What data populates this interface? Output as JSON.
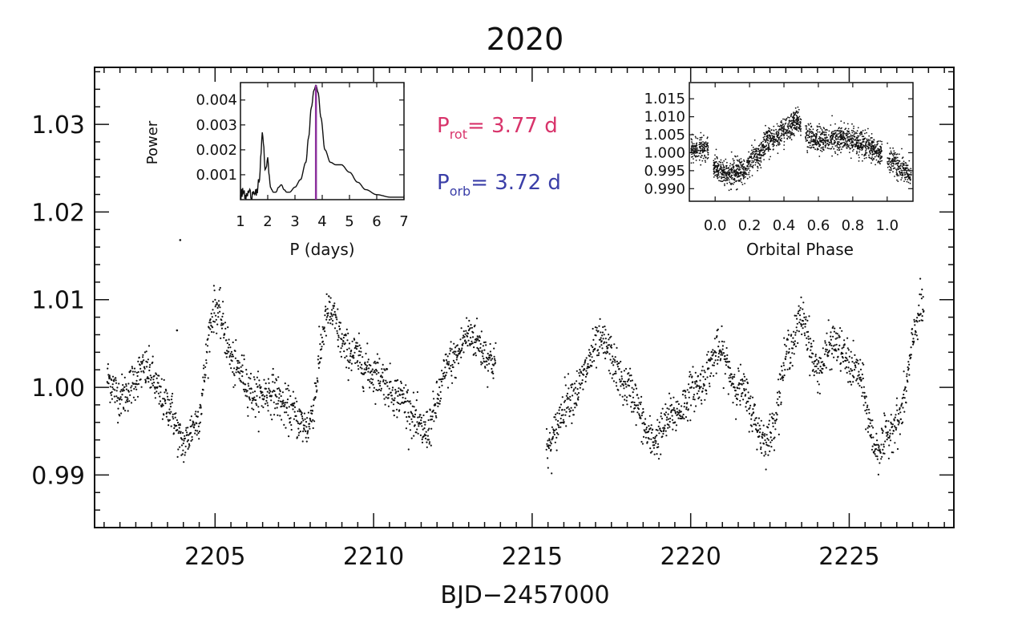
{
  "title": "2020",
  "chart_data": {
    "type": "scatter",
    "title": "2020",
    "xlabel": "BJD−2457000",
    "ylabel": "",
    "xlim": [
      2201.2,
      2228.3
    ],
    "ylim": [
      0.984,
      1.0365
    ],
    "x_ticks": [
      2205,
      2210,
      2215,
      2220,
      2225
    ],
    "y_ticks": [
      0.99,
      1.0,
      1.01,
      1.02,
      1.03
    ],
    "y_tick_labels": [
      "0.99",
      "1.00",
      "1.01",
      "1.02",
      "1.03"
    ],
    "segments": [
      [
        2201.6,
        2213.85
      ],
      [
        2215.45,
        2227.35
      ]
    ],
    "rotation_period_days": 3.77,
    "orbital_period_days": 3.72,
    "spot_model": {
      "description": "Approximate light-curve envelope read off the figure (flux vs BJD-2457000)",
      "knots_x": [
        2201.6,
        2202.0,
        2202.8,
        2203.5,
        2204.0,
        2204.4,
        2205.0,
        2205.7,
        2206.3,
        2206.8,
        2207.3,
        2207.9,
        2208.6,
        2209.2,
        2210.1,
        2210.8,
        2211.6,
        2212.5,
        2213.0,
        2213.8,
        2215.45,
        2216.2,
        2217.2,
        2218.0,
        2218.8,
        2219.5,
        2220.2,
        2220.9,
        2221.5,
        2222.4,
        2223.2,
        2223.5,
        2224.0,
        2224.5,
        2225.2,
        2225.9,
        2226.5,
        2227.3
      ],
      "knots_y": [
        1.001,
        0.999,
        1.002,
        0.998,
        0.9935,
        0.996,
        1.009,
        1.002,
        0.999,
        0.9995,
        0.9975,
        0.9955,
        1.0085,
        1.004,
        1.0015,
        0.999,
        0.995,
        1.003,
        1.006,
        1.003,
        0.993,
        0.999,
        1.005,
        1.0,
        0.994,
        0.997,
        1.0,
        1.004,
        1.0,
        0.994,
        1.005,
        1.008,
        1.002,
        1.005,
        1.002,
        0.993,
        0.996,
        1.009
      ],
      "scatter_sigma": 0.0012
    },
    "outliers": [
      {
        "x": 2203.9,
        "y": 1.0168
      },
      {
        "x": 2203.8,
        "y": 1.0065
      }
    ],
    "inset_periodogram": {
      "type": "line",
      "xlabel": "P (days)",
      "ylabel": "Power",
      "xlim": [
        1,
        7
      ],
      "ylim": [
        0,
        0.0047
      ],
      "x_ticks": [
        1,
        2,
        3,
        4,
        5,
        6,
        7
      ],
      "y_ticks": [
        0.001,
        0.002,
        0.003,
        0.004
      ],
      "y_tick_labels": [
        "0.001",
        "0.002",
        "0.003",
        "0.004"
      ],
      "x": [
        1.0,
        1.1,
        1.2,
        1.3,
        1.4,
        1.5,
        1.6,
        1.7,
        1.75,
        1.8,
        1.85,
        1.9,
        1.95,
        2.0,
        2.05,
        2.1,
        2.15,
        2.2,
        2.3,
        2.4,
        2.5,
        2.6,
        2.7,
        2.8,
        3.0,
        3.2,
        3.4,
        3.5,
        3.6,
        3.7,
        3.77,
        3.85,
        3.95,
        4.1,
        4.3,
        4.5,
        4.7,
        5.0,
        5.3,
        5.6,
        6.0,
        6.5,
        7.0
      ],
      "y": [
        0.0002,
        0.0003,
        0.0001,
        0.0003,
        0.0002,
        0.0004,
        0.0003,
        0.0008,
        0.0018,
        0.0027,
        0.0022,
        0.0012,
        0.0013,
        0.0017,
        0.001,
        0.0005,
        0.0004,
        0.0003,
        0.0003,
        0.0005,
        0.0006,
        0.0004,
        0.0003,
        0.0003,
        0.0005,
        0.0008,
        0.0015,
        0.0025,
        0.0037,
        0.0044,
        0.0046,
        0.0043,
        0.0033,
        0.002,
        0.0015,
        0.0014,
        0.0014,
        0.0011,
        0.0007,
        0.0004,
        0.0002,
        0.0001,
        0.0001
      ],
      "peak_line_x": 3.77,
      "peak_line_color": "#8B2F9C"
    },
    "inset_phase": {
      "type": "scatter",
      "xlabel": "Orbital Phase",
      "xlim": [
        -0.15,
        1.15
      ],
      "ylim": [
        0.9865,
        1.0195
      ],
      "x_ticks": [
        0.0,
        0.2,
        0.4,
        0.6,
        0.8,
        1.0
      ],
      "x_tick_labels": [
        "0.0",
        "0.2",
        "0.4",
        "0.6",
        "0.8",
        "1.0"
      ],
      "y_ticks": [
        0.99,
        0.995,
        1.0,
        1.005,
        1.01,
        1.015
      ],
      "y_tick_labels": [
        "0.990",
        "0.995",
        "1.000",
        "1.005",
        "1.010",
        "1.015"
      ],
      "curve_phase": [
        -0.15,
        -0.05,
        0.0,
        0.08,
        0.16,
        0.24,
        0.32,
        0.4,
        0.48,
        0.54,
        0.62,
        0.72,
        0.8,
        0.88,
        0.96,
        1.02,
        1.08,
        1.15
      ],
      "curve_flux": [
        1.001,
        1.001,
        0.996,
        0.994,
        0.995,
        0.999,
        1.004,
        1.006,
        1.009,
        1.004,
        1.0035,
        1.004,
        1.0035,
        1.002,
        1.0,
        0.998,
        0.9955,
        0.9935
      ],
      "scatter_sigma": 0.0017
    },
    "annotations": {
      "prot": {
        "symbol": "P",
        "subscript": "rot",
        "text": "=  3.77  d",
        "color": "#D8346B"
      },
      "porb": {
        "symbol": "P",
        "subscript": "orb",
        "text": "=  3.72  d",
        "color": "#3B3FA8"
      }
    }
  }
}
